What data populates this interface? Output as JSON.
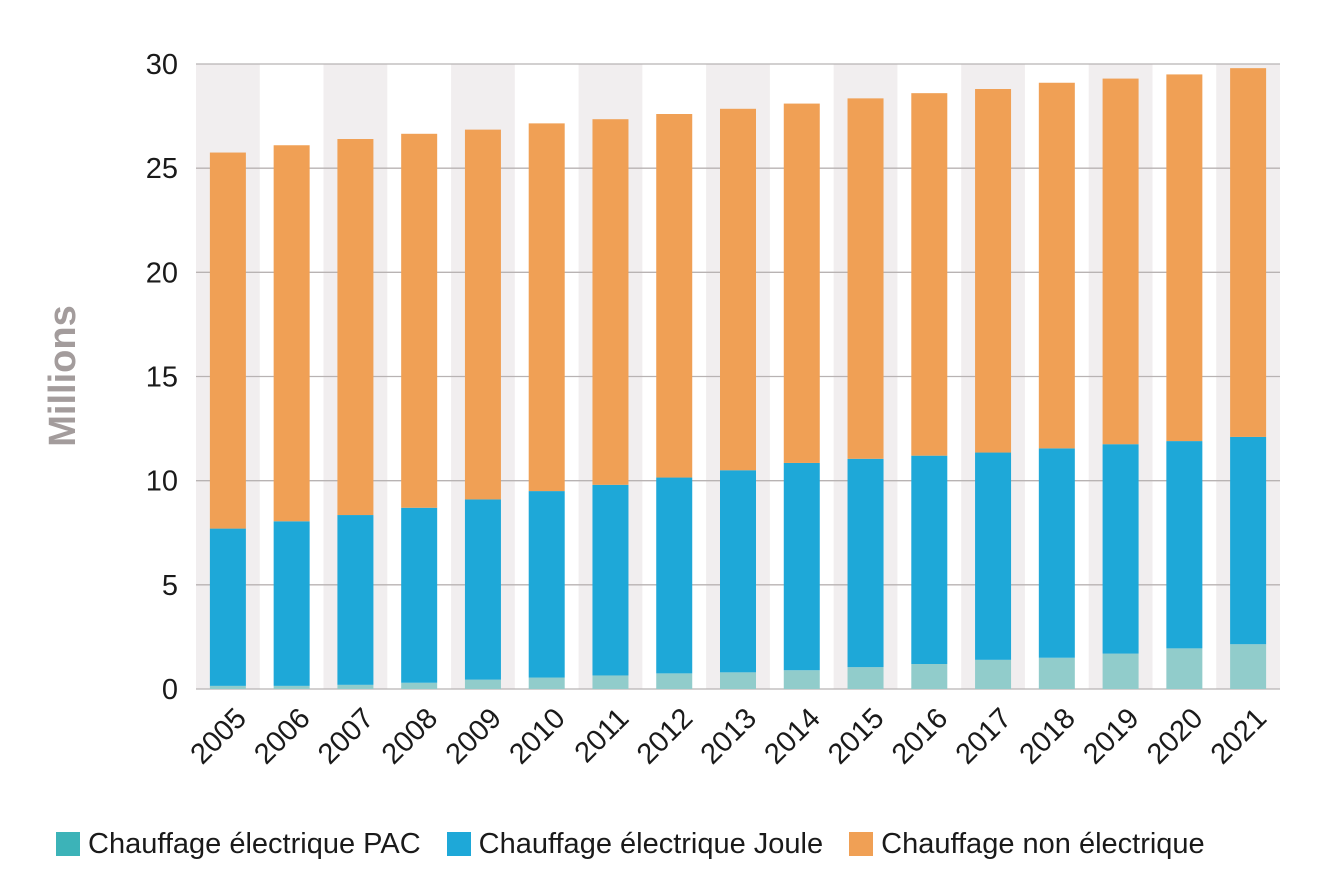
{
  "chart_data": {
    "type": "bar",
    "stacked": true,
    "title": "",
    "xlabel": "",
    "ylabel": "Millions",
    "ylim": [
      0,
      30
    ],
    "yticks": [
      0,
      5,
      10,
      15,
      20,
      25,
      30
    ],
    "grid": true,
    "legend_position": "bottom",
    "categories": [
      "2005",
      "2006",
      "2007",
      "2008",
      "2009",
      "2010",
      "2011",
      "2012",
      "2013",
      "2014",
      "2015",
      "2016",
      "2017",
      "2018",
      "2019",
      "2020",
      "2021"
    ],
    "series": [
      {
        "name": "Chauffage électrique PAC",
        "color": "#91cccb",
        "values": [
          0.15,
          0.15,
          0.2,
          0.3,
          0.45,
          0.55,
          0.65,
          0.75,
          0.8,
          0.9,
          1.05,
          1.2,
          1.4,
          1.5,
          1.7,
          1.95,
          2.15
        ]
      },
      {
        "name": "Chauffage électrique Joule",
        "color": "#1ea8d8",
        "values": [
          7.55,
          7.9,
          8.15,
          8.4,
          8.65,
          8.95,
          9.15,
          9.4,
          9.7,
          9.95,
          10.0,
          10.0,
          9.95,
          10.05,
          10.05,
          9.95,
          9.95
        ]
      },
      {
        "name": "Chauffage non électrique",
        "color": "#f0a055",
        "values": [
          18.05,
          18.05,
          18.05,
          17.95,
          17.75,
          17.65,
          17.55,
          17.45,
          17.35,
          17.25,
          17.3,
          17.4,
          17.45,
          17.55,
          17.55,
          17.6,
          17.7
        ]
      }
    ],
    "legend_swatch_pac": "#3cb3b8",
    "band_color": "#f1eeef",
    "grid_color": "#b8b3b3"
  }
}
